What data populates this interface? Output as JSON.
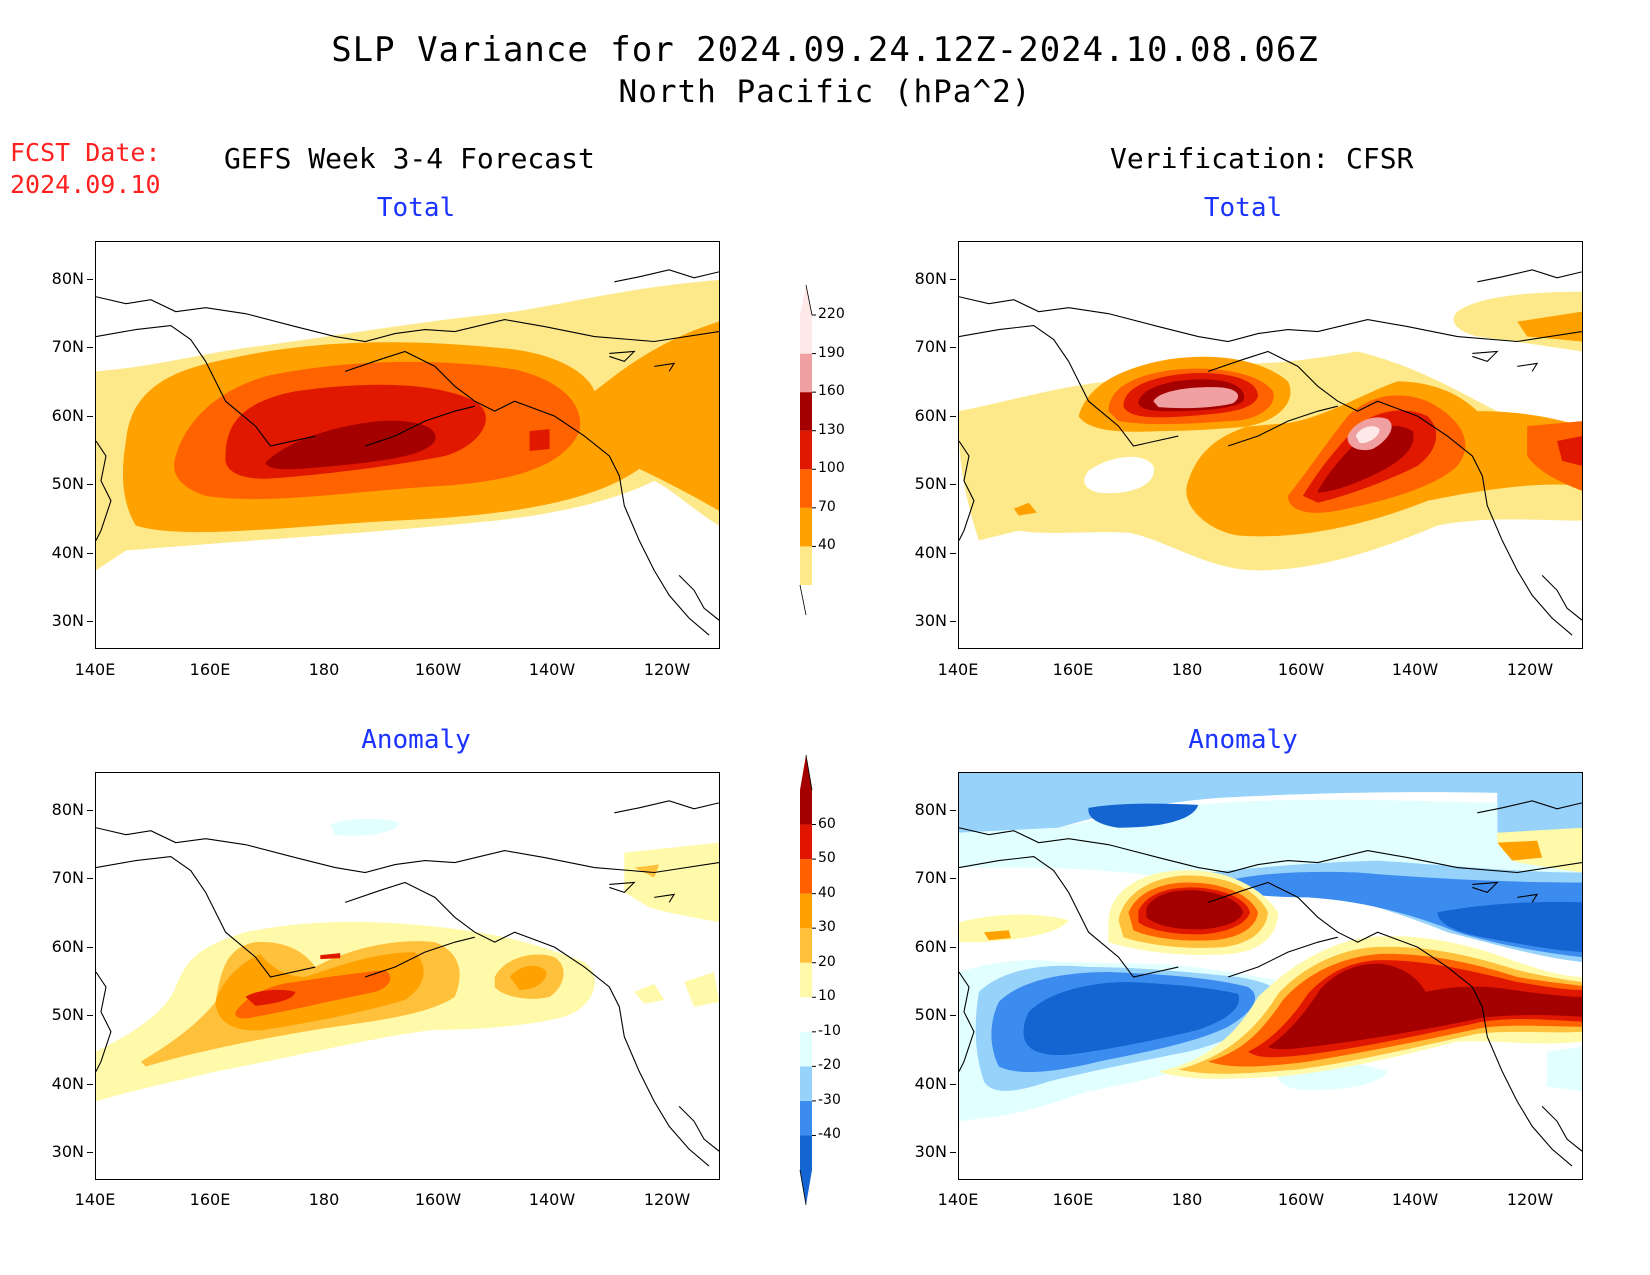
{
  "header": {
    "title_line1": "SLP Variance for 2024.09.24.12Z-2024.10.08.06Z",
    "title_line2": "North Pacific (hPa^2)",
    "fcst_label": "FCST Date:",
    "fcst_date": "2024.09.10"
  },
  "columns": {
    "left": "GEFS Week 3-4 Forecast",
    "right": "Verification: CFSR"
  },
  "panels": {
    "total_left": "Total",
    "total_right": "Total",
    "anomaly_left": "Anomaly",
    "anomaly_right": "Anomaly"
  },
  "axes": {
    "lat_labels": [
      "80N",
      "70N",
      "60N",
      "50N",
      "40N",
      "30N"
    ],
    "lon_labels": [
      "140E",
      "160E",
      "180",
      "160W",
      "140W",
      "120W"
    ]
  },
  "colorbars": {
    "total": {
      "levels": [
        "40",
        "70",
        "100",
        "130",
        "160",
        "190",
        "220"
      ],
      "colors": [
        "#fee98a",
        "#ffa100",
        "#ff6300",
        "#e11800",
        "#a50000",
        "#f0a0a0",
        "#ffe8e8"
      ]
    },
    "anomaly": {
      "levels": [
        "-40",
        "-30",
        "-20",
        "-10",
        "10",
        "20",
        "30",
        "40",
        "50",
        "60"
      ],
      "colors": [
        "#1464d2",
        "#3c8cf0",
        "#96d2fa",
        "#e1ffff",
        "#ffffff",
        "#fffaaa",
        "#ffc03c",
        "#ffa000",
        "#ff6000",
        "#e11400",
        "#a50000"
      ]
    }
  },
  "map_colors": {
    "land_outline": "#000000",
    "frame": "#000000"
  }
}
